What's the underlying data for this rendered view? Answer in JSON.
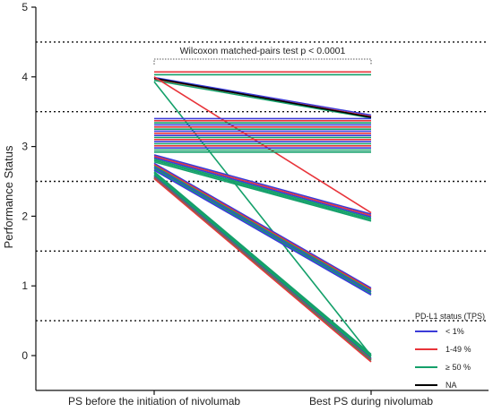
{
  "chart_data": {
    "type": "line",
    "ylabel": "Performance Status",
    "xlabel": "",
    "categories": [
      "PS before the initiation of nivolumab",
      "Best PS during nivolumab"
    ],
    "ylim": [
      -0.5,
      5
    ],
    "yticks": [
      0,
      1,
      2,
      3,
      4,
      5
    ],
    "gridlines_dotted": [
      0.5,
      1.5,
      2.5,
      3.5,
      4.5
    ],
    "annotation": "Wilcoxon matched-pairs test  p < 0.0001",
    "legend": {
      "title": "PD-L1 status (TPS)",
      "position": "bottom-right",
      "entries": [
        {
          "label": "< 1%",
          "color": "#3b3bd8"
        },
        {
          "label": "1-49 %",
          "color": "#e8343a"
        },
        {
          "label": "≥ 50 %",
          "color": "#14a06a"
        },
        {
          "label": "NA",
          "color": "#000000"
        }
      ]
    },
    "colors": {
      "low": "#3b3bd8",
      "mid": "#e8343a",
      "high": "#14a06a",
      "na": "#000000"
    },
    "series": [
      {
        "group": "mid",
        "values": [
          4.07,
          4.07
        ]
      },
      {
        "group": "high",
        "values": [
          4.03,
          4.03
        ]
      },
      {
        "group": "low",
        "values": [
          3.99,
          3.45
        ]
      },
      {
        "group": "mid",
        "values": [
          3.97,
          3.43
        ]
      },
      {
        "group": "high",
        "values": [
          3.95,
          3.41
        ]
      },
      {
        "group": "na",
        "values": [
          3.98,
          3.42
        ]
      },
      {
        "group": "mid",
        "values": [
          4.0,
          2.05
        ]
      },
      {
        "group": "high",
        "values": [
          3.93,
          0.0
        ]
      },
      {
        "group": "low",
        "values": [
          3.4,
          3.4
        ]
      },
      {
        "group": "mid",
        "values": [
          3.37,
          3.37
        ]
      },
      {
        "group": "high",
        "values": [
          3.34,
          3.34
        ]
      },
      {
        "group": "low",
        "values": [
          3.31,
          3.31
        ]
      },
      {
        "group": "mid",
        "values": [
          3.28,
          3.28
        ]
      },
      {
        "group": "high",
        "values": [
          3.25,
          3.25
        ]
      },
      {
        "group": "low",
        "values": [
          3.22,
          3.22
        ]
      },
      {
        "group": "mid",
        "values": [
          3.19,
          3.19
        ]
      },
      {
        "group": "low",
        "values": [
          3.16,
          3.16
        ]
      },
      {
        "group": "high",
        "values": [
          3.13,
          3.13
        ]
      },
      {
        "group": "mid",
        "values": [
          3.1,
          3.1
        ]
      },
      {
        "group": "low",
        "values": [
          3.07,
          3.07
        ]
      },
      {
        "group": "high",
        "values": [
          3.04,
          3.04
        ]
      },
      {
        "group": "mid",
        "values": [
          3.01,
          3.01
        ]
      },
      {
        "group": "low",
        "values": [
          2.98,
          2.98
        ]
      },
      {
        "group": "high",
        "values": [
          2.95,
          2.95
        ]
      },
      {
        "group": "high",
        "values": [
          2.92,
          2.92
        ]
      },
      {
        "group": "low",
        "values": [
          2.88,
          2.03
        ]
      },
      {
        "group": "mid",
        "values": [
          2.86,
          2.01
        ]
      },
      {
        "group": "low",
        "values": [
          2.84,
          1.99
        ]
      },
      {
        "group": "high",
        "values": [
          2.82,
          1.97
        ]
      },
      {
        "group": "high",
        "values": [
          2.8,
          1.95
        ]
      },
      {
        "group": "high",
        "values": [
          2.78,
          1.93
        ]
      },
      {
        "group": "low",
        "values": [
          2.76,
          0.97
        ]
      },
      {
        "group": "mid",
        "values": [
          2.74,
          0.95
        ]
      },
      {
        "group": "high",
        "values": [
          2.72,
          0.93
        ]
      },
      {
        "group": "low",
        "values": [
          2.7,
          0.91
        ]
      },
      {
        "group": "high",
        "values": [
          2.68,
          0.89
        ]
      },
      {
        "group": "low",
        "values": [
          2.66,
          0.87
        ]
      },
      {
        "group": "high",
        "values": [
          2.64,
          0.02
        ]
      },
      {
        "group": "high",
        "values": [
          2.62,
          0.0
        ]
      },
      {
        "group": "high",
        "values": [
          2.6,
          -0.02
        ]
      },
      {
        "group": "high",
        "values": [
          2.58,
          -0.04
        ]
      },
      {
        "group": "low",
        "values": [
          2.57,
          -0.05
        ]
      },
      {
        "group": "mid",
        "values": [
          2.56,
          -0.06
        ]
      },
      {
        "group": "high",
        "values": [
          2.55,
          -0.07
        ]
      },
      {
        "group": "mid",
        "values": [
          2.54,
          -0.09
        ]
      }
    ]
  }
}
